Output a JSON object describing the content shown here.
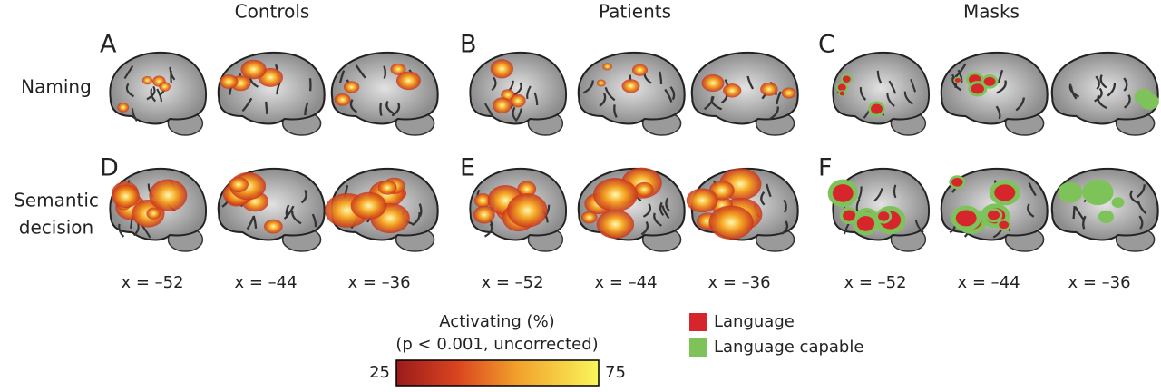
{
  "columns": [
    "Controls",
    "Patients",
    "Masks"
  ],
  "panels": [
    "A",
    "B",
    "C",
    "D",
    "E",
    "F"
  ],
  "rows": [
    [
      "Naming"
    ],
    [
      "Semantic",
      "decision"
    ]
  ],
  "slices": [
    [
      "x = –52",
      "x = –44",
      "x = –36"
    ],
    [
      "x = –52",
      "x = –44",
      "x = –36"
    ],
    [
      "x = –52",
      "x = –44",
      "x = –36"
    ]
  ],
  "colorbar": {
    "title": "Activating (%)",
    "subtitle": "(p < 0.001, uncorrected)",
    "min": 25,
    "max": 75
  },
  "legend": [
    {
      "name": "Language",
      "color": "#d7262b"
    },
    {
      "name": "Language capable",
      "color": "#7dc35a"
    }
  ]
}
